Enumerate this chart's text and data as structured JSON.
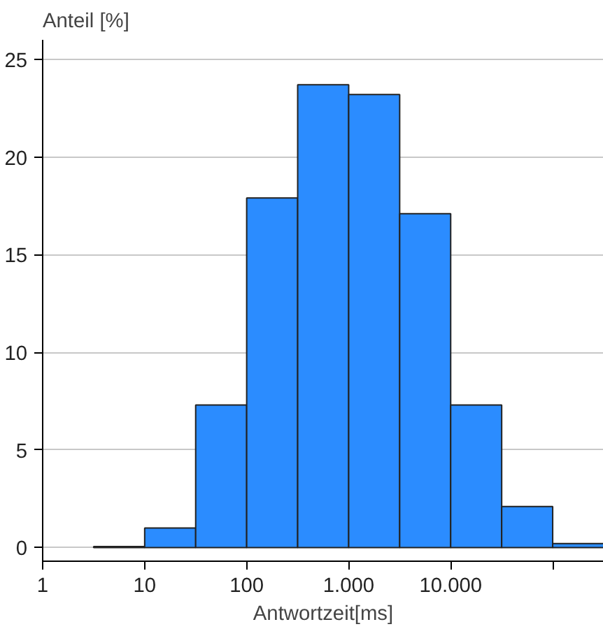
{
  "chart_data": {
    "type": "histogram",
    "xlabel": "Antwortzeit[ms]",
    "ylabel": "Anteil [%]",
    "bins": [
      3.162,
      10,
      31.62,
      100,
      316.2,
      1000,
      3162,
      10000,
      31623,
      100000,
      316228
    ],
    "values": [
      0.05,
      1.0,
      7.3,
      17.9,
      23.7,
      23.2,
      17.1,
      7.3,
      2.1,
      0.2
    ],
    "color": "#2b8cff",
    "log": "x",
    "xlim": [
      1,
      316228
    ],
    "xticks": [
      1,
      10,
      100,
      {
        "value": 1000,
        "label": "1.000"
      },
      {
        "value": 10000,
        "label": "10.000"
      },
      {
        "value": 100000,
        "label": null
      }
    ],
    "ylim": [
      -0.7,
      26
    ],
    "yticks": [
      0,
      5,
      10,
      15,
      20,
      25
    ],
    "grid": "y"
  }
}
